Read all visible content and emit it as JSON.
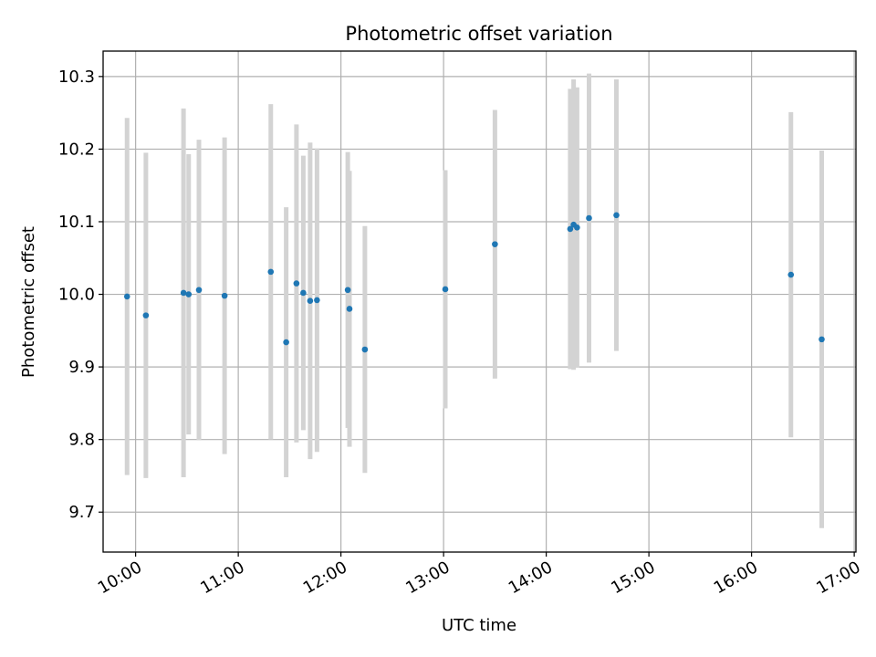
{
  "chart_data": {
    "type": "scatter",
    "title": "Photometric offset variation",
    "xlabel": "UTC time",
    "ylabel": "Photometric offset",
    "x_tick_labels": [
      "10:00",
      "11:00",
      "12:00",
      "13:00",
      "14:00",
      "15:00",
      "16:00",
      "17:00"
    ],
    "y_tick_labels": [
      "9.7",
      "9.8",
      "9.9",
      "10.0",
      "10.1",
      "10.2",
      "10.3"
    ],
    "y_ticks": [
      9.7,
      9.8,
      9.9,
      10.0,
      10.1,
      10.2,
      10.3
    ],
    "xlim": [
      "09:41",
      "17:01"
    ],
    "ylim": [
      9.645,
      10.335
    ],
    "grid": true,
    "point_color": "#1f77b4",
    "errorbar_color": "#d3d3d3",
    "points": [
      {
        "x": "09:55",
        "y": 9.997,
        "err": 0.246
      },
      {
        "x": "10:06",
        "y": 9.971,
        "err": 0.224
      },
      {
        "x": "10:28",
        "y": 10.002,
        "err": 0.254
      },
      {
        "x": "10:31",
        "y": 10.0,
        "err": 0.193
      },
      {
        "x": "10:37",
        "y": 10.006,
        "err": 0.207
      },
      {
        "x": "10:52",
        "y": 9.998,
        "err": 0.218
      },
      {
        "x": "11:19",
        "y": 10.031,
        "err": 0.231
      },
      {
        "x": "11:28",
        "y": 9.934,
        "err": 0.186
      },
      {
        "x": "11:34",
        "y": 10.015,
        "err": 0.219
      },
      {
        "x": "11:38",
        "y": 10.002,
        "err": 0.189
      },
      {
        "x": "11:42",
        "y": 9.991,
        "err": 0.218
      },
      {
        "x": "11:46",
        "y": 9.992,
        "err": 0.209
      },
      {
        "x": "12:04",
        "y": 10.006,
        "err": 0.19
      },
      {
        "x": "12:05",
        "y": 9.98,
        "err": 0.19
      },
      {
        "x": "12:14",
        "y": 9.924,
        "err": 0.17
      },
      {
        "x": "13:01",
        "y": 10.007,
        "err": 0.164
      },
      {
        "x": "13:30",
        "y": 10.069,
        "err": 0.185
      },
      {
        "x": "14:14",
        "y": 10.09,
        "err": 0.193
      },
      {
        "x": "14:16",
        "y": 10.096,
        "err": 0.2
      },
      {
        "x": "14:18",
        "y": 10.092,
        "err": 0.193
      },
      {
        "x": "14:25",
        "y": 10.105,
        "err": 0.199
      },
      {
        "x": "14:41",
        "y": 10.109,
        "err": 0.187
      },
      {
        "x": "16:23",
        "y": 10.027,
        "err": 0.224
      },
      {
        "x": "16:41",
        "y": 9.938,
        "err": 0.26
      }
    ]
  }
}
